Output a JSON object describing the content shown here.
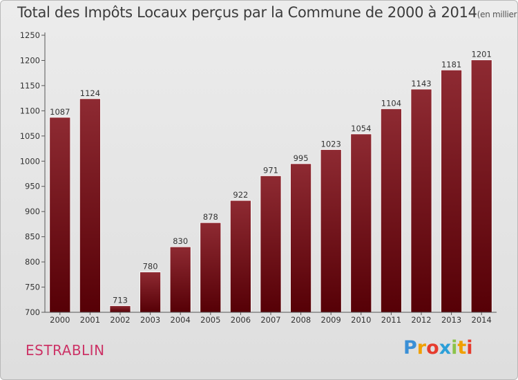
{
  "title": "Total des Impôts Locaux perçus par la Commune de 2000 à 2014",
  "unit": "(en milliers d'€)",
  "commune": "ESTRABLIN",
  "logo": {
    "letters": [
      "P",
      "r",
      "o",
      "x",
      "i",
      "t",
      "i"
    ],
    "colors": [
      "#3a8fd6",
      "#f0a000",
      "#e63c2e",
      "#2c9fd8",
      "#8bc34a",
      "#f0a000",
      "#e63c2e"
    ]
  },
  "chart_data": {
    "type": "bar",
    "title": "Total des Impôts Locaux perçus par la Commune de 2000 à 2014",
    "xlabel": "",
    "ylabel": "",
    "unit": "(en milliers d'€)",
    "categories": [
      "2000",
      "2001",
      "2002",
      "2003",
      "2004",
      "2005",
      "2006",
      "2007",
      "2008",
      "2009",
      "2010",
      "2011",
      "2012",
      "2013",
      "2014"
    ],
    "values": [
      1087,
      1124,
      713,
      780,
      830,
      878,
      922,
      971,
      995,
      1023,
      1054,
      1104,
      1143,
      1181,
      1201
    ],
    "ylim": [
      700,
      1250
    ],
    "yticks": [
      700,
      750,
      800,
      850,
      900,
      950,
      1000,
      1050,
      1100,
      1150,
      1200,
      1250
    ],
    "bar_color": "#8b1c24",
    "grid": false,
    "legend": "none"
  }
}
